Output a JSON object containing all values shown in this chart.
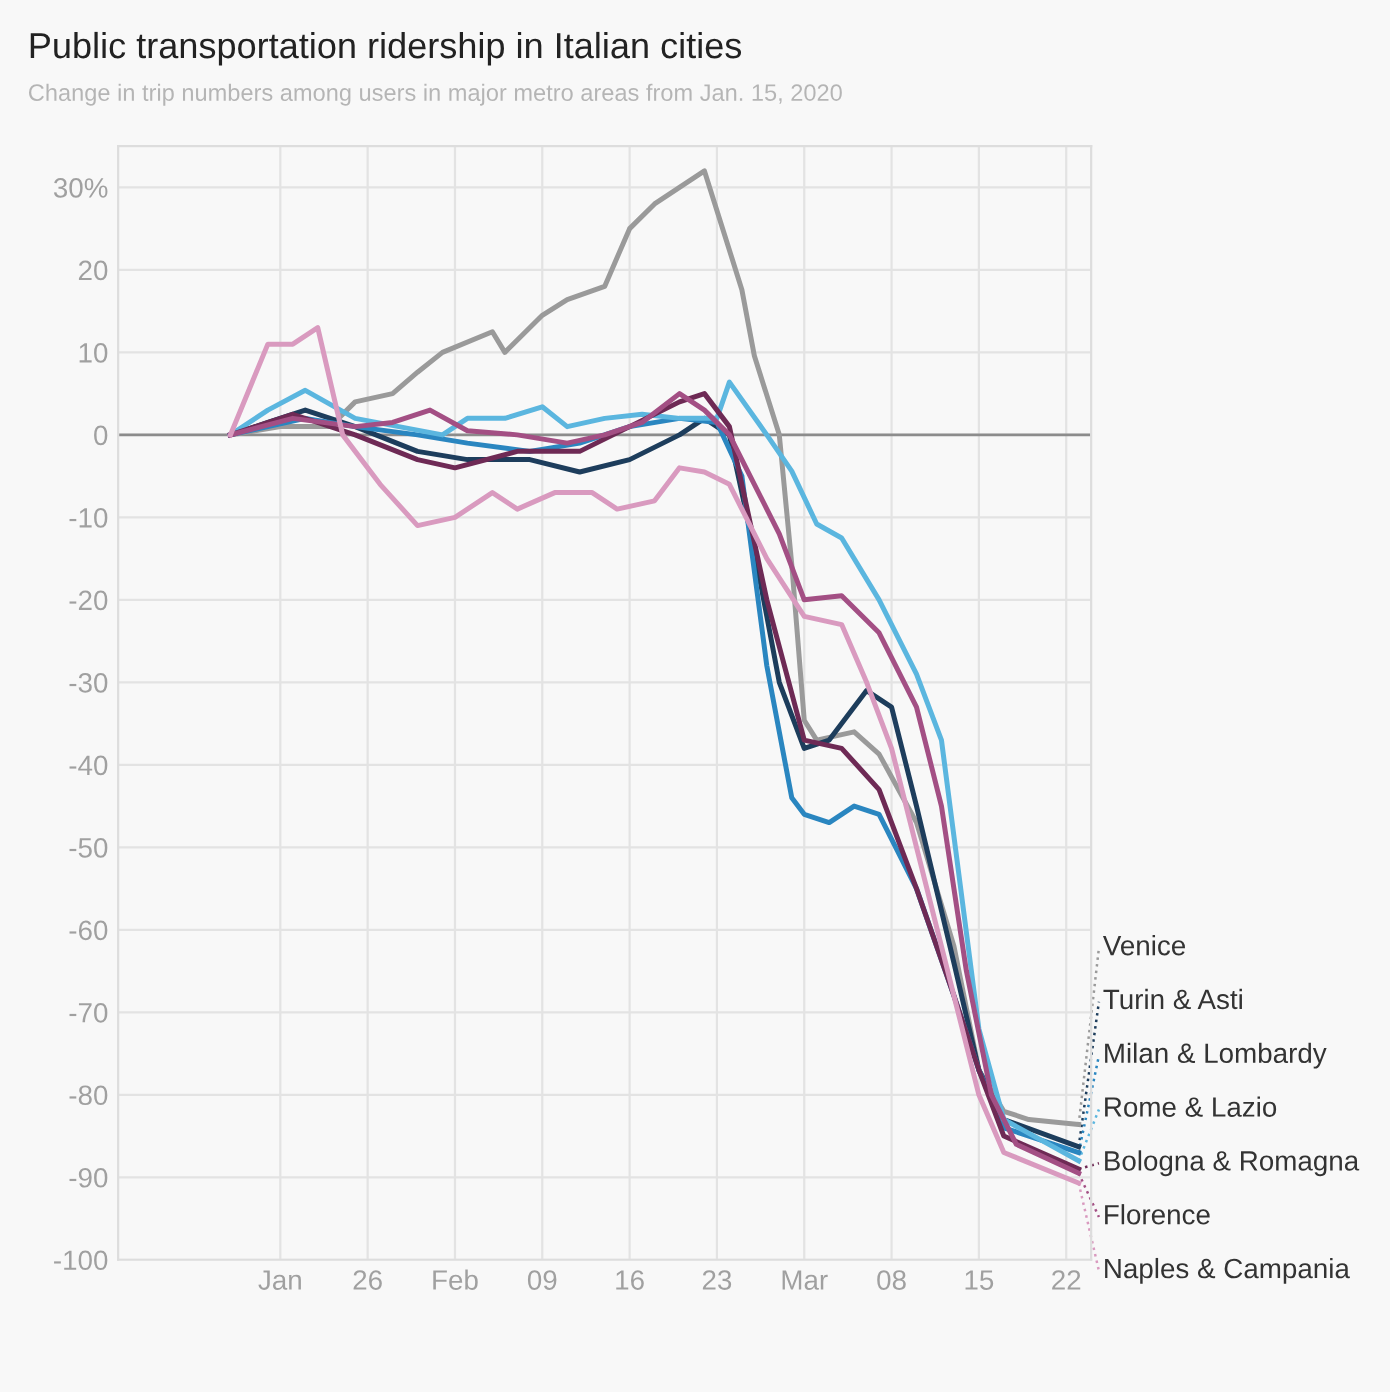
{
  "chart_data": {
    "type": "line",
    "title": "Public transportation ridership in Italian cities",
    "subtitle": "Change in trip numbers among users in major metro areas from Jan. 15, 2020",
    "xlim": [
      "2020-01-06",
      "2020-03-24"
    ],
    "xticks": [
      {
        "value": "2020-01-19",
        "label": "Jan"
      },
      {
        "value": "2020-01-26",
        "label": "26"
      },
      {
        "value": "2020-02-02",
        "label": "Feb"
      },
      {
        "value": "2020-02-09",
        "label": "09"
      },
      {
        "value": "2020-02-16",
        "label": "16"
      },
      {
        "value": "2020-02-23",
        "label": "23"
      },
      {
        "value": "2020-03-01",
        "label": "Mar"
      },
      {
        "value": "2020-03-08",
        "label": "08"
      },
      {
        "value": "2020-03-15",
        "label": "15"
      },
      {
        "value": "2020-03-22",
        "label": "22"
      }
    ],
    "ylim": [
      -100,
      35
    ],
    "yticks": [
      {
        "value": 30,
        "label": "30%"
      },
      20,
      10,
      0,
      -10,
      -20,
      -30,
      -40,
      -50,
      -60,
      -70,
      -80,
      -90,
      -100
    ],
    "grid": true,
    "legend": "right",
    "marker": "none",
    "line_style": "solid",
    "ref_lines": [
      {
        "axis": "y",
        "value": 0,
        "color": "#8c8c8c"
      }
    ],
    "series": [
      {
        "name": "Venice",
        "color": "#9a9a9a",
        "x": [
          "2020-01-15",
          "2020-01-19",
          "2020-01-23",
          "2020-01-25",
          "2020-01-28",
          "2020-01-30",
          "2020-02-01",
          "2020-02-05",
          "2020-02-06",
          "2020-02-09",
          "2020-02-11",
          "2020-02-14",
          "2020-02-16",
          "2020-02-18",
          "2020-02-20",
          "2020-02-22",
          "2020-02-25",
          "2020-02-26",
          "2020-02-28",
          "2020-02-29",
          "2020-03-01",
          "2020-03-02",
          "2020-03-05",
          "2020-03-07",
          "2020-03-10",
          "2020-03-13",
          "2020-03-15",
          "2020-03-17",
          "2020-03-19",
          "2020-03-23"
        ],
        "values": [
          0,
          1,
          1,
          4,
          5,
          7.6,
          10,
          12.5,
          10,
          14.5,
          16.4,
          18,
          25,
          28,
          30,
          32,
          17.6,
          9.6,
          0,
          -15.7,
          -34.6,
          -37,
          -36,
          -38.7,
          -47,
          -62,
          -77,
          -82,
          -83,
          -83.6
        ]
      },
      {
        "name": "Turin & Asti",
        "color": "#1d3d5c",
        "x": [
          "2020-01-15",
          "2020-01-18",
          "2020-01-21",
          "2020-01-25",
          "2020-01-30",
          "2020-02-03",
          "2020-02-08",
          "2020-02-12",
          "2020-02-16",
          "2020-02-20",
          "2020-02-22",
          "2020-02-24",
          "2020-02-26",
          "2020-02-28",
          "2020-03-01",
          "2020-03-03",
          "2020-03-06",
          "2020-03-08",
          "2020-03-10",
          "2020-03-13",
          "2020-03-15",
          "2020-03-17",
          "2020-03-23"
        ],
        "values": [
          0,
          1.5,
          3,
          1,
          -2,
          -3,
          -3,
          -4.5,
          -3,
          0,
          2,
          0,
          -14,
          -30,
          -38,
          -37,
          -31,
          -33,
          -45,
          -64,
          -77,
          -83,
          -86.3
        ]
      },
      {
        "name": "Milan & Lombardy",
        "color": "#2a86c0",
        "x": [
          "2020-01-15",
          "2020-01-18",
          "2020-01-21",
          "2020-01-25",
          "2020-01-30",
          "2020-02-03",
          "2020-02-08",
          "2020-02-12",
          "2020-02-16",
          "2020-02-20",
          "2020-02-23",
          "2020-02-25",
          "2020-02-27",
          "2020-02-29",
          "2020-03-01",
          "2020-03-03",
          "2020-03-05",
          "2020-03-07",
          "2020-03-10",
          "2020-03-13",
          "2020-03-15",
          "2020-03-17",
          "2020-03-23"
        ],
        "values": [
          0,
          1,
          2,
          1,
          0,
          -1,
          -2,
          -1,
          1,
          2,
          1.5,
          -5,
          -28,
          -44,
          -46,
          -47,
          -45,
          -46,
          -55,
          -68,
          -77,
          -84,
          -87
        ]
      },
      {
        "name": "Rome & Lazio",
        "color": "#5bb6df",
        "x": [
          "2020-01-15",
          "2020-01-18",
          "2020-01-21",
          "2020-01-25",
          "2020-02-01",
          "2020-02-03",
          "2020-02-06",
          "2020-02-09",
          "2020-02-11",
          "2020-02-14",
          "2020-02-17",
          "2020-02-20",
          "2020-02-23",
          "2020-02-24",
          "2020-02-27",
          "2020-02-29",
          "2020-03-02",
          "2020-03-04",
          "2020-03-07",
          "2020-03-10",
          "2020-03-12",
          "2020-03-15",
          "2020-03-17",
          "2020-03-23"
        ],
        "values": [
          0,
          3,
          5.4,
          2,
          0,
          2,
          2,
          3.4,
          1,
          2,
          2.5,
          2,
          2,
          6.4,
          0,
          -4.4,
          -10.8,
          -12.5,
          -20,
          -29,
          -37,
          -72,
          -83,
          -88
        ]
      },
      {
        "name": "Bologna & Romagna",
        "color": "#6e2a55",
        "x": [
          "2020-01-15",
          "2020-01-20",
          "2020-01-25",
          "2020-01-30",
          "2020-02-02",
          "2020-02-07",
          "2020-02-12",
          "2020-02-16",
          "2020-02-20",
          "2020-02-22",
          "2020-02-24",
          "2020-02-27",
          "2020-03-01",
          "2020-03-04",
          "2020-03-07",
          "2020-03-10",
          "2020-03-13",
          "2020-03-15",
          "2020-03-17",
          "2020-03-23"
        ],
        "values": [
          0,
          2.5,
          0,
          -3,
          -4,
          -2,
          -2,
          1,
          4,
          5,
          1,
          -20,
          -37,
          -38,
          -43,
          -55,
          -68,
          -77,
          -85,
          -89
        ]
      },
      {
        "name": "Florence",
        "color": "#a34f84",
        "x": [
          "2020-01-15",
          "2020-01-20",
          "2020-01-25",
          "2020-01-28",
          "2020-01-31",
          "2020-02-03",
          "2020-02-07",
          "2020-02-11",
          "2020-02-14",
          "2020-02-17",
          "2020-02-20",
          "2020-02-22",
          "2020-02-24",
          "2020-02-26",
          "2020-02-28",
          "2020-03-01",
          "2020-03-04",
          "2020-03-07",
          "2020-03-10",
          "2020-03-12",
          "2020-03-14",
          "2020-03-16",
          "2020-03-18",
          "2020-03-23"
        ],
        "values": [
          0,
          2,
          1,
          1.5,
          3,
          0.5,
          0,
          -1,
          0,
          1.5,
          5,
          3,
          0,
          -6,
          -12,
          -20,
          -19.5,
          -24,
          -33,
          -45,
          -65,
          -80,
          -86,
          -89.5
        ]
      },
      {
        "name": "Naples & Campania",
        "color": "#d99abf",
        "x": [
          "2020-01-15",
          "2020-01-18",
          "2020-01-20",
          "2020-01-22",
          "2020-01-24",
          "2020-01-27",
          "2020-01-30",
          "2020-02-02",
          "2020-02-05",
          "2020-02-07",
          "2020-02-10",
          "2020-02-13",
          "2020-02-15",
          "2020-02-18",
          "2020-02-20",
          "2020-02-22",
          "2020-02-24",
          "2020-02-27",
          "2020-03-01",
          "2020-03-04",
          "2020-03-06",
          "2020-03-08",
          "2020-03-10",
          "2020-03-13",
          "2020-03-15",
          "2020-03-17",
          "2020-03-23"
        ],
        "values": [
          0,
          11,
          11,
          13,
          0,
          -6,
          -11,
          -10,
          -7,
          -9,
          -7,
          -7,
          -9,
          -8,
          -4,
          -4.5,
          -6,
          -15,
          -22,
          -23,
          -30,
          -38,
          -50,
          -68,
          -80,
          -87,
          -90.7
        ]
      }
    ]
  }
}
